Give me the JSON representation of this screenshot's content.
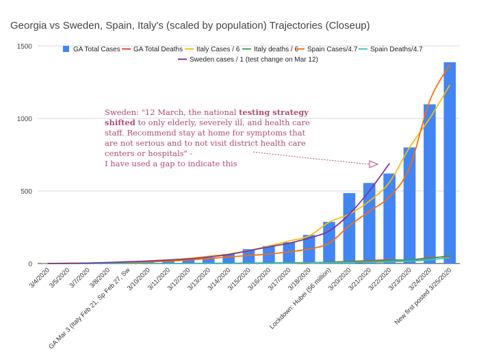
{
  "chart_data": {
    "type": "bar",
    "title": "Georgia vs Sweden, Spain, Italy's (scaled by population) Trajectories (Closeup)",
    "xlabel": "",
    "ylabel": "",
    "ylim": [
      0,
      1500
    ],
    "yticks": [
      0,
      500,
      1000,
      1500
    ],
    "grid": true,
    "legend_position": "top",
    "categories": [
      "3/4/2020",
      "3/5/2020",
      "3/7/2020",
      "3/8/2020",
      "GA Mar 3 (Italy Feb 21, Sp Feb 27, Sw",
      "3/10/2020",
      "3/11/2020",
      "3/12/2020",
      "3/13/2020",
      "3/14/2020",
      "3/15/2020",
      "3/16/2020",
      "3/17/2020",
      "3/18/2020",
      "Lockdown: Hubei (56 million)",
      "3/20/2020",
      "3/21/2020",
      "3/22/2020",
      "3/23/2020",
      "3/24/2020",
      "New first posted 3/25/2020"
    ],
    "series": [
      {
        "name": "GA Total Cases",
        "kind": "bar",
        "color": "#4285f4",
        "values": [
          2,
          2,
          3,
          5,
          11,
          17,
          22,
          31,
          42,
          66,
          99,
          121,
          146,
          197,
          287,
          485,
          555,
          620,
          800,
          1097,
          1387
        ]
      },
      {
        "name": "GA Total Deaths",
        "kind": "line",
        "color": "#ea4335",
        "values": [
          0,
          0,
          0,
          0,
          0,
          0,
          0,
          0,
          0,
          0,
          0,
          1,
          1,
          1,
          10,
          14,
          20,
          25,
          25,
          40,
          47
        ]
      },
      {
        "name": "Italy Cases / 6",
        "kind": "line",
        "color": "#fbbc04",
        "values": [
          1,
          2,
          3,
          6,
          10,
          17,
          25,
          35,
          50,
          65,
          90,
          120,
          155,
          190,
          285,
          340,
          430,
          560,
          800,
          1000,
          1230
        ]
      },
      {
        "name": "Italy deaths / 6",
        "kind": "line",
        "color": "#34a853",
        "values": [
          0,
          0,
          0,
          0,
          0,
          0,
          0,
          1,
          1,
          2,
          3,
          4,
          5,
          6,
          8,
          12,
          15,
          20,
          25,
          35,
          55
        ]
      },
      {
        "name": "Spain Cases/4.7",
        "kind": "line",
        "color": "#ff6d01",
        "values": [
          0,
          1,
          2,
          4,
          7,
          11,
          16,
          24,
          34,
          45,
          55,
          65,
          80,
          100,
          140,
          260,
          360,
          460,
          660,
          1120,
          1370
        ]
      },
      {
        "name": "Spain Deaths/4.7",
        "kind": "line",
        "color": "#46bdc6",
        "values": [
          0,
          0,
          0,
          0,
          0,
          0,
          0,
          0,
          0,
          0,
          1,
          1,
          2,
          3,
          4,
          5,
          8,
          12,
          16,
          25,
          40
        ]
      },
      {
        "name": "Sweden cases / 1 (test change on Mar 12)",
        "kind": "line",
        "color": "#7e3794",
        "values": [
          0,
          1,
          3,
          7,
          12,
          17,
          24,
          32,
          45,
          62,
          88,
          115,
          140,
          175,
          225,
          340,
          500,
          690,
          null,
          null,
          null
        ]
      }
    ],
    "annotation": {
      "text_before_bold": "Sweden: \"12 March, the national ",
      "bold_line1": "testing strategy",
      "bold_line2": "shifted",
      "line2_rest": " to only elderly, severely ill, and health care",
      "line3": "staff. Recommend stay at home for symptoms that",
      "line4": "are not serious and to not visit district health care",
      "line5": "centers or hospitals\" -",
      "line6": "I have used a gap to indicate this",
      "color": "#b04a7a"
    }
  }
}
